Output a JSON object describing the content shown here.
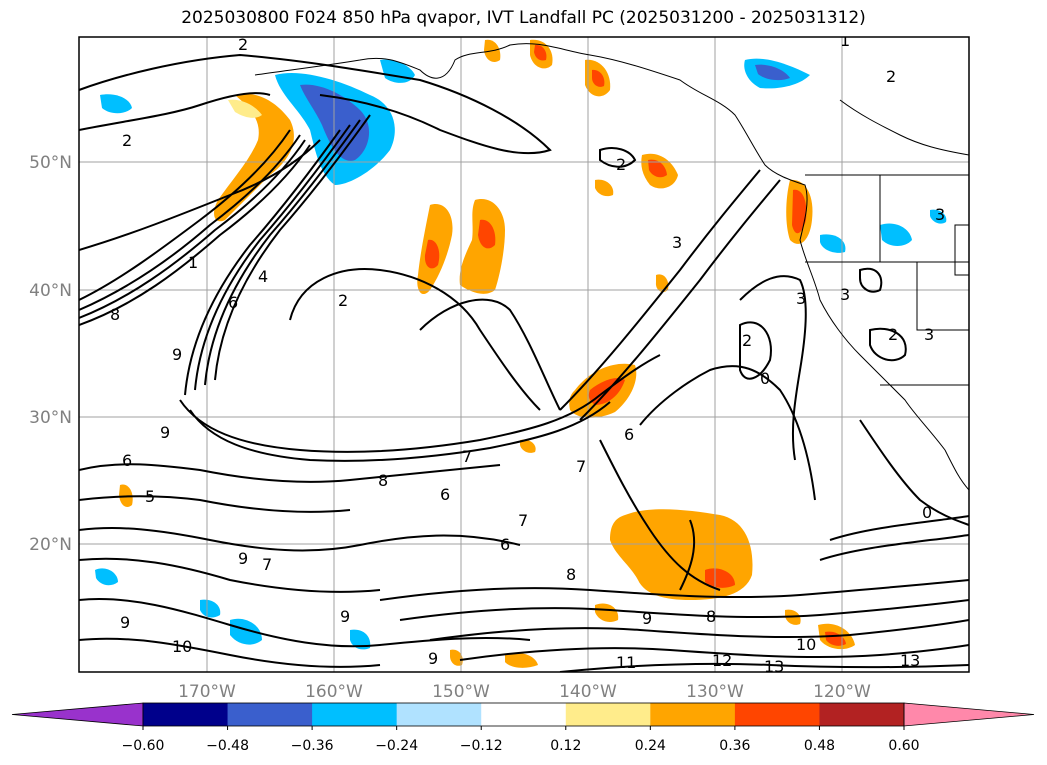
{
  "title": "2025030800 F024 850 hPa qvapor, IVT Landfall PC (2025031200 - 2025031312)",
  "lat_labels": [
    "50°N",
    "40°N",
    "30°N",
    "20°N"
  ],
  "lon_labels": [
    "170°W",
    "160°W",
    "150°W",
    "140°W",
    "130°W",
    "120°W"
  ],
  "colorbar": {
    "tick_labels": [
      "−0.60",
      "−0.48",
      "−0.36",
      "−0.24",
      "−0.12",
      "0.12",
      "0.24",
      "0.36",
      "0.48",
      "0.60"
    ],
    "colors": [
      "#9932cc",
      "#00008b",
      "#3a5fcd",
      "#00bfff",
      "#b0e2ff",
      "#ffffff",
      "#ffec8b",
      "#ffa500",
      "#ff4500",
      "#b22222",
      "#ff88aa"
    ]
  },
  "contour_labels": [
    "1",
    "2",
    "2",
    "2",
    "2",
    "2",
    "2",
    "3",
    "3",
    "3",
    "3",
    "4",
    "5",
    "6",
    "6",
    "6",
    "6",
    "6",
    "7",
    "7",
    "7",
    "7",
    "8",
    "8",
    "8",
    "8",
    "9",
    "9",
    "9",
    "9",
    "9",
    "9",
    "9",
    "10",
    "10",
    "11",
    "12",
    "13",
    "13",
    "0",
    "0",
    "1",
    "2",
    "3"
  ]
}
